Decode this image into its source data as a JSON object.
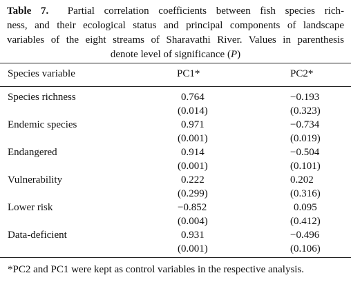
{
  "caption": {
    "label": "Table 7.",
    "line1": "Partial correlation coefficients between fish species rich-",
    "line2": "ness, and their ecological status and principal components of landscape",
    "line3": "variables of the eight streams of Sharavathi River. Values in parenthesis",
    "line4_pre": "denote level of significance (",
    "line4_var": "P",
    "line4_post": ")"
  },
  "headers": {
    "col0": "Species variable",
    "col1": "PC1*",
    "col2": "PC2*"
  },
  "rows": [
    {
      "name": "Species richness",
      "pc1": "0.764",
      "pc1_p": "(0.014)",
      "pc2": "−0.193",
      "pc2_p": "(0.323)"
    },
    {
      "name": "Endemic species",
      "pc1": "0.971",
      "pc1_p": "(0.001)",
      "pc2": "−0.734",
      "pc2_p": "(0.019)"
    },
    {
      "name": "Endangered",
      "pc1": "0.914",
      "pc1_p": "(0.001)",
      "pc2": "−0.504",
      "pc2_p": "(0.101)"
    },
    {
      "name": "Vulnerability",
      "pc1": "0.222",
      "pc1_p": "(0.299)",
      "pc2": "0.202",
      "pc2_p": "(0.316)"
    },
    {
      "name": "Lower risk",
      "pc1": "−0.852",
      "pc1_p": "(0.004)",
      "pc2": "0.095",
      "pc2_p": "(0.412)"
    },
    {
      "name": "Data-deficient",
      "pc1": "0.931",
      "pc1_p": "(0.001)",
      "pc2": "−0.496",
      "pc2_p": "(0.106)"
    }
  ],
  "footnote": "*PC2 and PC1 were kept as control variables in the respective analysis."
}
